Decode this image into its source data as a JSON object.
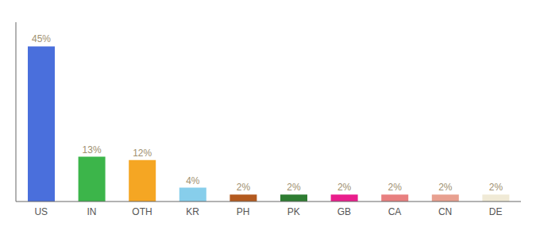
{
  "chart_data": {
    "type": "bar",
    "categories": [
      "US",
      "IN",
      "OTH",
      "KR",
      "PH",
      "PK",
      "GB",
      "CA",
      "CN",
      "DE"
    ],
    "values": [
      45,
      13,
      12,
      4,
      2,
      2,
      2,
      2,
      2,
      2
    ],
    "value_labels": [
      "45%",
      "13%",
      "12%",
      "4%",
      "2%",
      "2%",
      "2%",
      "2%",
      "2%",
      "2%"
    ],
    "colors": [
      "#4a6fdc",
      "#3cb54a",
      "#f5a623",
      "#87ceeb",
      "#b35a1f",
      "#2e7d32",
      "#e91e8c",
      "#e88080",
      "#e8a090",
      "#f0ead6"
    ],
    "ylim": [
      0,
      52
    ],
    "data_labels": true,
    "tick_labels": "x",
    "grid": false
  }
}
